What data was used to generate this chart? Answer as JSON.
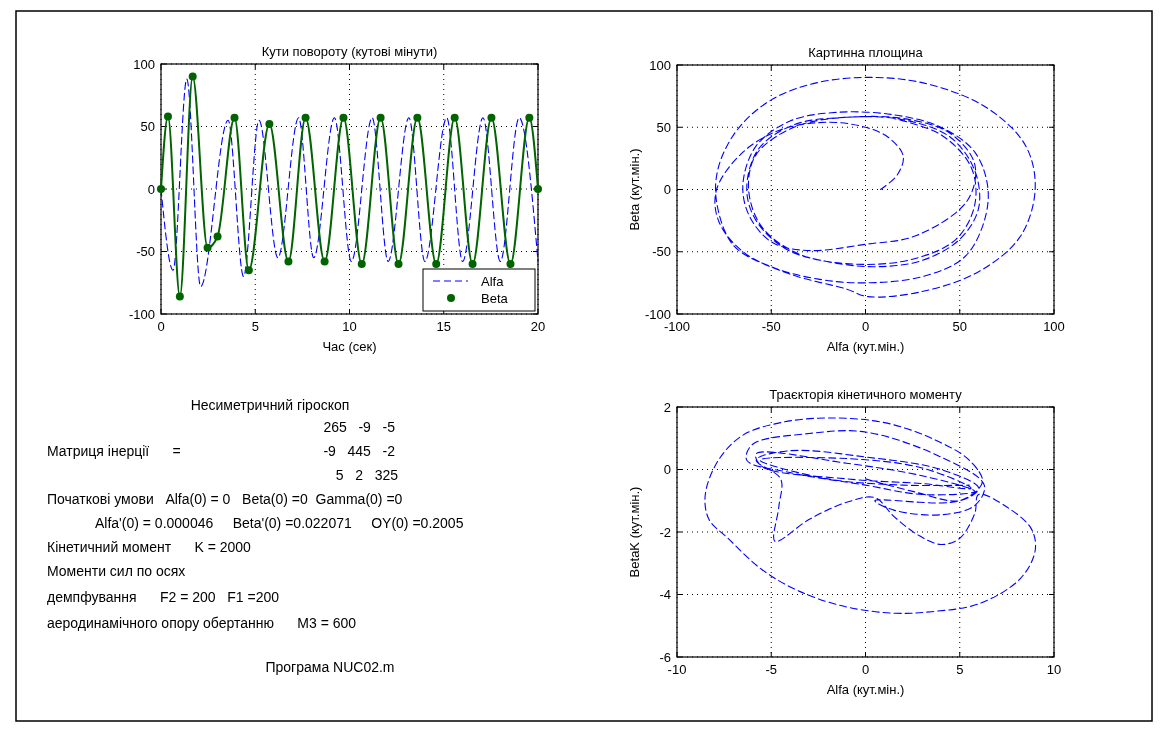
{
  "chart_data": [
    {
      "type": "line",
      "title": "Кути повороту (кутові мінути)",
      "xlabel": "Час (сек)",
      "xlim": [
        0,
        20
      ],
      "xticks": [
        0,
        5,
        10,
        15,
        20
      ],
      "ylim": [
        -100,
        100
      ],
      "yticks": [
        -100,
        -50,
        0,
        50,
        100
      ],
      "grid": true,
      "legend": "bottom right",
      "series": [
        {
          "name": "Alfa",
          "color": "#0000ff",
          "line_style": "dashed",
          "marker": "none",
          "x": [
            0,
            0.64,
            1.37,
            2.1,
            3.56,
            4.38,
            5.2,
            6.2,
            7.3,
            8.1,
            9.2,
            10.1,
            11.2,
            12.05,
            13.15,
            14.0,
            15.16,
            16.0,
            17.08,
            18.0,
            19.0,
            20
          ],
          "values": [
            0,
            -65,
            88,
            -78,
            55,
            -70,
            55,
            -55,
            57,
            -55,
            57,
            -58,
            57,
            -58,
            57,
            -58,
            57,
            -58,
            57,
            -58,
            57,
            -58
          ]
        },
        {
          "name": "Beta",
          "color": "#006400",
          "line_style": "solid",
          "marker": "circle",
          "x": [
            0,
            0.37,
            1.0,
            1.68,
            2.47,
            3.0,
            3.9,
            4.66,
            5.75,
            6.76,
            7.67,
            8.68,
            9.68,
            10.65,
            11.65,
            12.6,
            13.6,
            14.6,
            15.58,
            16.53,
            17.53,
            18.54,
            19.54,
            20
          ],
          "values": [
            0,
            58,
            -86,
            90,
            -47,
            -38,
            57,
            -65,
            52,
            -58,
            57,
            -58,
            57,
            -60,
            57,
            -60,
            57,
            -60,
            57,
            -60,
            57,
            -60,
            57,
            0
          ]
        }
      ]
    },
    {
      "type": "line",
      "title": "Картинна площина",
      "xlabel": "Alfa (кут.мін.)",
      "ylabel": "Beta (кут.мін.)",
      "xlim": [
        -100,
        100
      ],
      "xticks": [
        -100,
        -50,
        0,
        50,
        100
      ],
      "ylim": [
        -100,
        100
      ],
      "yticks": [
        -100,
        -50,
        0,
        50,
        100
      ],
      "grid": true,
      "series": [
        {
          "color": "#0000ff",
          "line_style": "dashed",
          "x": [
            8,
            17,
            20,
            12,
            0,
            -20,
            -45,
            -65,
            -79,
            -78,
            -65,
            -40,
            -10,
            1,
            30,
            60,
            82,
            90,
            85,
            65,
            35,
            6,
            -25,
            -50,
            -68,
            -78,
            -79,
            -70,
            -50,
            -25,
            0,
            30,
            52,
            62,
            65,
            58,
            40,
            15,
            -15,
            -40,
            -58,
            -65,
            -62,
            -50,
            -31,
            0,
            27,
            54,
            58,
            45,
            20,
            -10,
            -38,
            -57,
            -63,
            -58,
            -42,
            -20,
            5,
            30,
            50,
            60,
            58,
            45,
            20,
            -10,
            -38,
            -58,
            -62,
            -55,
            -35,
            -5,
            25,
            48,
            58,
            56,
            40,
            15
          ],
          "values": [
            0,
            12,
            27,
            42,
            50,
            54,
            48,
            30,
            0,
            -25,
            -50,
            -68,
            -80,
            -86,
            -82,
            -66,
            -38,
            0,
            35,
            65,
            84,
            90,
            86,
            72,
            48,
            18,
            -10,
            -45,
            -62,
            -72,
            -75,
            -70,
            -55,
            -30,
            0,
            30,
            50,
            60,
            62,
            55,
            35,
            5,
            -20,
            -42,
            -49,
            -44,
            -37,
            -9,
            20,
            45,
            57,
            58,
            52,
            32,
            0,
            -25,
            -48,
            -58,
            -62,
            -57,
            -40,
            -15,
            15,
            42,
            56,
            58,
            50,
            28,
            0,
            -30,
            -52,
            -60,
            -56,
            -40,
            -12,
            18,
            44,
            57
          ]
        }
      ]
    },
    {
      "type": "other",
      "title": "Несиметричний гіроскоп",
      "annotations": [
        "265   -9   -5",
        "Матриця інерції      =",
        "-9   445   -2",
        "5   2   325",
        "Початкові умови   Alfa(0) = 0   Beta(0) =0  Gamma(0) =0",
        "Alfa'(0) = 0.000046     Beta'(0) =0.022071     OY(0) =0.2005",
        "Кінетичний момент      K = 2000",
        "Моменти сил по осях",
        "демпфування      F2 = 200   F1 =200",
        "аеродинамічного опору обертанню      M3 = 600",
        "Програма NUC02.m"
      ]
    },
    {
      "type": "line",
      "title": "Траєкторія кінетичного моменту",
      "xlabel": "Alfa (кут.мін.)",
      "ylabel": "BetaK (кут.мін.)",
      "xlim": [
        -10,
        10
      ],
      "xticks": [
        -10,
        -5,
        0,
        5,
        10
      ],
      "ylim": [
        -6,
        2
      ],
      "yticks": [
        -6,
        -4,
        -2,
        0,
        2
      ],
      "grid": true,
      "series": [
        {
          "color": "#0000ff",
          "line_style": "dashed",
          "x": [
            0,
            2.5,
            5,
            6,
            4,
            0,
            -4,
            -5.8,
            -4.5,
            -4.6,
            -4.8,
            -3,
            -1,
            0.5,
            1.5,
            2.8,
            4,
            5,
            5.8,
            6,
            7.5,
            8.8,
            9,
            8.2,
            6,
            3.5,
            1.6,
            -1,
            -3.5,
            -5.5,
            -7.3,
            -8.3,
            -8.5,
            -7.8,
            -6.5,
            -4.5,
            -2,
            1,
            3.5,
            5.5,
            6.2,
            5,
            0.5,
            1.5,
            4,
            5.8,
            6.3,
            4,
            0,
            -3,
            -6,
            -6.3,
            -4,
            0,
            3,
            5.8,
            3,
            -1,
            -5.8,
            -5.5,
            -1,
            3,
            5.6,
            3,
            -1,
            -5.6,
            -2,
            2,
            5.5
          ],
          "values": [
            -0.3,
            -0.7,
            -1.0,
            -0.6,
            0,
            0.4,
            0.6,
            0.3,
            -0.3,
            -1.2,
            -2.3,
            -1.6,
            -1.05,
            -0.9,
            -1.5,
            -2.1,
            -2.4,
            -2.2,
            -1.4,
            -0.8,
            -1.2,
            -1.9,
            -2.6,
            -3.5,
            -4.3,
            -4.55,
            -4.6,
            -4.4,
            -3.9,
            -3.2,
            -2.2,
            -1.6,
            -0.8,
            0.3,
            1.1,
            1.5,
            1.65,
            1.5,
            1.0,
            0.3,
            -0.4,
            -1.0,
            -1.0,
            -1.3,
            -1.45,
            -1.15,
            -0.5,
            0.4,
            1.2,
            1.15,
            0.8,
            0.3,
            -0.1,
            -0.5,
            -0.8,
            -0.7,
            -0.2,
            0.2,
            0.5,
            0.1,
            -0.3,
            -0.45,
            -0.6,
            0.05,
            0.35,
            0.3,
            -0.3,
            -0.5,
            -0.5
          ]
        }
      ]
    }
  ]
}
